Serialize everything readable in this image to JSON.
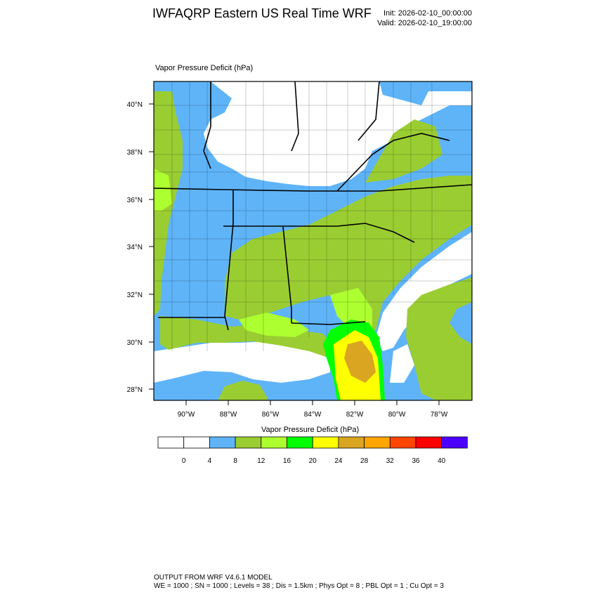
{
  "header": {
    "title": "IWFAQRP Eastern US Real Time WRF",
    "init": "Init: 2026-02-10_00:00:00",
    "valid": "Valid: 2026-02-10_19:00:00"
  },
  "field_label": "Vapor Pressure Deficit   (hPa)",
  "map": {
    "lat_ticks": [
      "40°N",
      "38°N",
      "36°N",
      "34°N",
      "32°N",
      "30°N",
      "28°N"
    ],
    "lon_ticks": [
      "90°W",
      "88°W",
      "86°W",
      "84°W",
      "82°W",
      "80°W",
      "78°W"
    ],
    "lat_range": [
      27.5,
      41.0
    ],
    "lon_range": [
      -91.6,
      -76.6
    ]
  },
  "colorbar": {
    "title": "Vapor Pressure Deficit  (hPa)",
    "labels": [
      "0",
      "4",
      "8",
      "12",
      "16",
      "20",
      "24",
      "28",
      "32",
      "36",
      "40"
    ],
    "colors": [
      "#ffffff",
      "#ffffff",
      "#5fb4f8",
      "#9acd32",
      "#adff2f",
      "#00ff00",
      "#ffff00",
      "#daa520",
      "#ffa500",
      "#ff4500",
      "#ff0000",
      "#4b00ff"
    ]
  },
  "footer": {
    "line1": "OUTPUT FROM WRF V4.6.1 MODEL",
    "line2": "WE = 1000 ; SN = 1000 ; Levels = 38 ; Dis = 1.5km ; Phys Opt = 8 ; PBL Opt = 1 ; Cu Opt = 3"
  }
}
